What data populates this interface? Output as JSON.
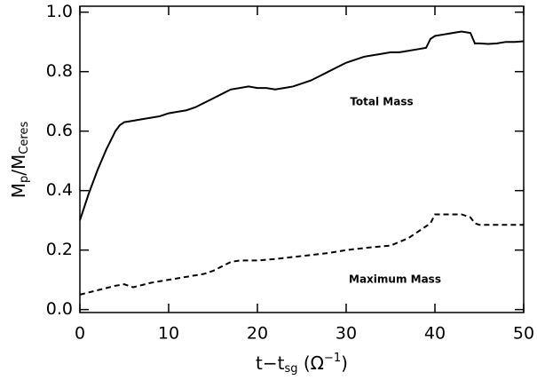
{
  "chart_data": {
    "type": "line",
    "xlabel": {
      "main": "t−t",
      "sub": "sg",
      "open": " (Ω",
      "sup": "−1",
      "close": ")"
    },
    "ylabel": {
      "main": "M",
      "sub": "p",
      "mid": "/M",
      "sub2": "Ceres"
    },
    "annotations": [
      "Total Mass",
      "Maximum Mass"
    ],
    "xlim": [
      0,
      50
    ],
    "xticks": [
      0,
      10,
      20,
      30,
      40,
      50
    ],
    "ylim": [
      -0.01,
      1.02
    ],
    "yticks": [
      {
        "value": 0,
        "label": "0.0"
      },
      0.2,
      0.4,
      0.6,
      0.8,
      {
        "value": 1,
        "label": "1.0"
      }
    ],
    "series": [
      {
        "color": "#000000",
        "dash": false,
        "x": [
          0,
          1,
          2,
          3,
          4,
          4.5,
          5,
          6,
          7,
          8,
          9,
          10,
          11,
          12,
          13,
          14,
          15,
          16,
          17,
          18,
          19,
          20,
          21,
          22,
          23,
          24,
          25,
          26,
          27,
          28,
          29,
          30,
          31,
          32,
          33,
          34,
          35,
          36,
          37,
          38,
          39,
          39.5,
          40,
          41,
          42,
          43,
          44,
          44.5,
          45,
          46,
          47,
          48,
          49,
          50
        ],
        "values": [
          0.3,
          0.39,
          0.47,
          0.54,
          0.6,
          0.62,
          0.63,
          0.635,
          0.64,
          0.645,
          0.65,
          0.66,
          0.665,
          0.67,
          0.68,
          0.695,
          0.71,
          0.725,
          0.74,
          0.745,
          0.75,
          0.745,
          0.745,
          0.74,
          0.745,
          0.75,
          0.76,
          0.77,
          0.785,
          0.8,
          0.815,
          0.83,
          0.84,
          0.85,
          0.855,
          0.86,
          0.865,
          0.865,
          0.87,
          0.875,
          0.88,
          0.91,
          0.92,
          0.925,
          0.93,
          0.935,
          0.93,
          0.895,
          0.895,
          0.893,
          0.895,
          0.9,
          0.9,
          0.902
        ]
      },
      {
        "color": "#000000",
        "dash": true,
        "x": [
          0,
          2,
          4,
          5,
          6,
          8,
          10,
          12,
          14,
          15,
          17,
          18,
          20,
          22,
          25,
          28,
          30,
          33,
          35,
          37,
          38,
          39,
          39.5,
          40,
          42,
          43,
          44,
          44.5,
          45,
          47,
          50
        ],
        "values": [
          0.05,
          0.065,
          0.08,
          0.085,
          0.075,
          0.09,
          0.1,
          0.11,
          0.12,
          0.13,
          0.16,
          0.165,
          0.165,
          0.17,
          0.18,
          0.19,
          0.2,
          0.21,
          0.215,
          0.24,
          0.26,
          0.28,
          0.29,
          0.32,
          0.32,
          0.32,
          0.31,
          0.29,
          0.285,
          0.285,
          0.285
        ]
      }
    ]
  }
}
